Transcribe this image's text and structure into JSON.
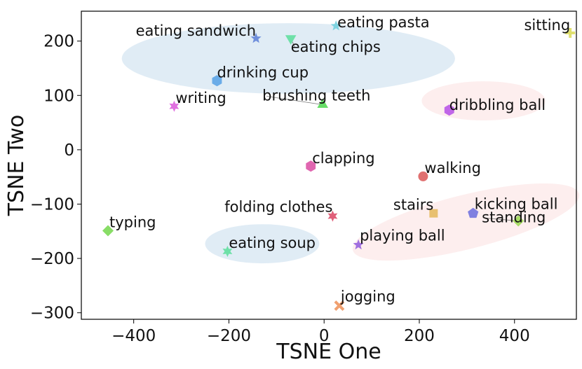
{
  "chart_data": {
    "type": "scatter",
    "xlabel": "TSNE One",
    "ylabel": "TSNE Two",
    "xlim": [
      -510,
      530
    ],
    "ylim": [
      -312,
      255
    ],
    "x_ticks": [
      -400,
      -200,
      0,
      200,
      400
    ],
    "y_ticks": [
      200,
      100,
      0,
      -100,
      -200,
      -300
    ],
    "grid": false,
    "points": [
      {
        "label": "eating sandwich",
        "x": -143,
        "y": 205,
        "marker": "star",
        "color": "#6f8fdc"
      },
      {
        "label": "eating pasta",
        "x": 25,
        "y": 228,
        "marker": "star",
        "color": "#7fd3e0"
      },
      {
        "label": "eating chips",
        "x": -70,
        "y": 205,
        "marker": "triangle-down",
        "color": "#6ee0a8"
      },
      {
        "label": "sitting",
        "x": 517,
        "y": 215,
        "marker": "plus",
        "color": "#e0e070"
      },
      {
        "label": "drinking cup",
        "x": -225,
        "y": 127,
        "marker": "hexagon",
        "color": "#6aace8"
      },
      {
        "label": "writing",
        "x": -315,
        "y": 80,
        "marker": "star6",
        "color": "#e070e0"
      },
      {
        "label": "brushing teeth",
        "x": -3,
        "y": 83,
        "marker": "triangle-up",
        "color": "#66dd66"
      },
      {
        "label": "dribbling ball",
        "x": 263,
        "y": 73,
        "marker": "hexagon",
        "color": "#c066e8"
      },
      {
        "label": "clapping",
        "x": -28,
        "y": -30,
        "marker": "hexagon",
        "color": "#e066b0"
      },
      {
        "label": "walking",
        "x": 208,
        "y": -49,
        "marker": "circle",
        "color": "#e07070"
      },
      {
        "label": "folding clothes",
        "x": 18,
        "y": -122,
        "marker": "star6",
        "color": "#e0607a"
      },
      {
        "label": "stairs",
        "x": 230,
        "y": -117,
        "marker": "square",
        "color": "#e8c070"
      },
      {
        "label": "kicking ball",
        "x": 313,
        "y": -117,
        "marker": "pentagon",
        "color": "#8080e0"
      },
      {
        "label": "standing",
        "x": 408,
        "y": -131,
        "marker": "diamond",
        "color": "#a8dc66"
      },
      {
        "label": "typing",
        "x": -454,
        "y": -149,
        "marker": "diamond",
        "color": "#88dd66"
      },
      {
        "label": "eating soup",
        "x": -203,
        "y": -187,
        "marker": "star6",
        "color": "#6ee0a8"
      },
      {
        "label": "playing ball",
        "x": 72,
        "y": -175,
        "marker": "star",
        "color": "#a070e0"
      },
      {
        "label": "jogging",
        "x": 32,
        "y": -287,
        "marker": "x",
        "color": "#f0a070"
      }
    ],
    "clusters": [
      {
        "cx": -75,
        "cy": 168,
        "rx": 350,
        "ry": 65,
        "angle": 0,
        "color": "#d5e6f2"
      },
      {
        "cx": 335,
        "cy": 90,
        "rx": 130,
        "ry": 36,
        "angle": 0,
        "color": "#fce8e8"
      },
      {
        "cx": 298,
        "cy": -133,
        "rx": 245,
        "ry": 50,
        "angle": 14,
        "color": "#fce8e8"
      },
      {
        "cx": -130,
        "cy": -173,
        "rx": 120,
        "ry": 36,
        "angle": 0,
        "color": "#d5e6f2"
      }
    ]
  }
}
